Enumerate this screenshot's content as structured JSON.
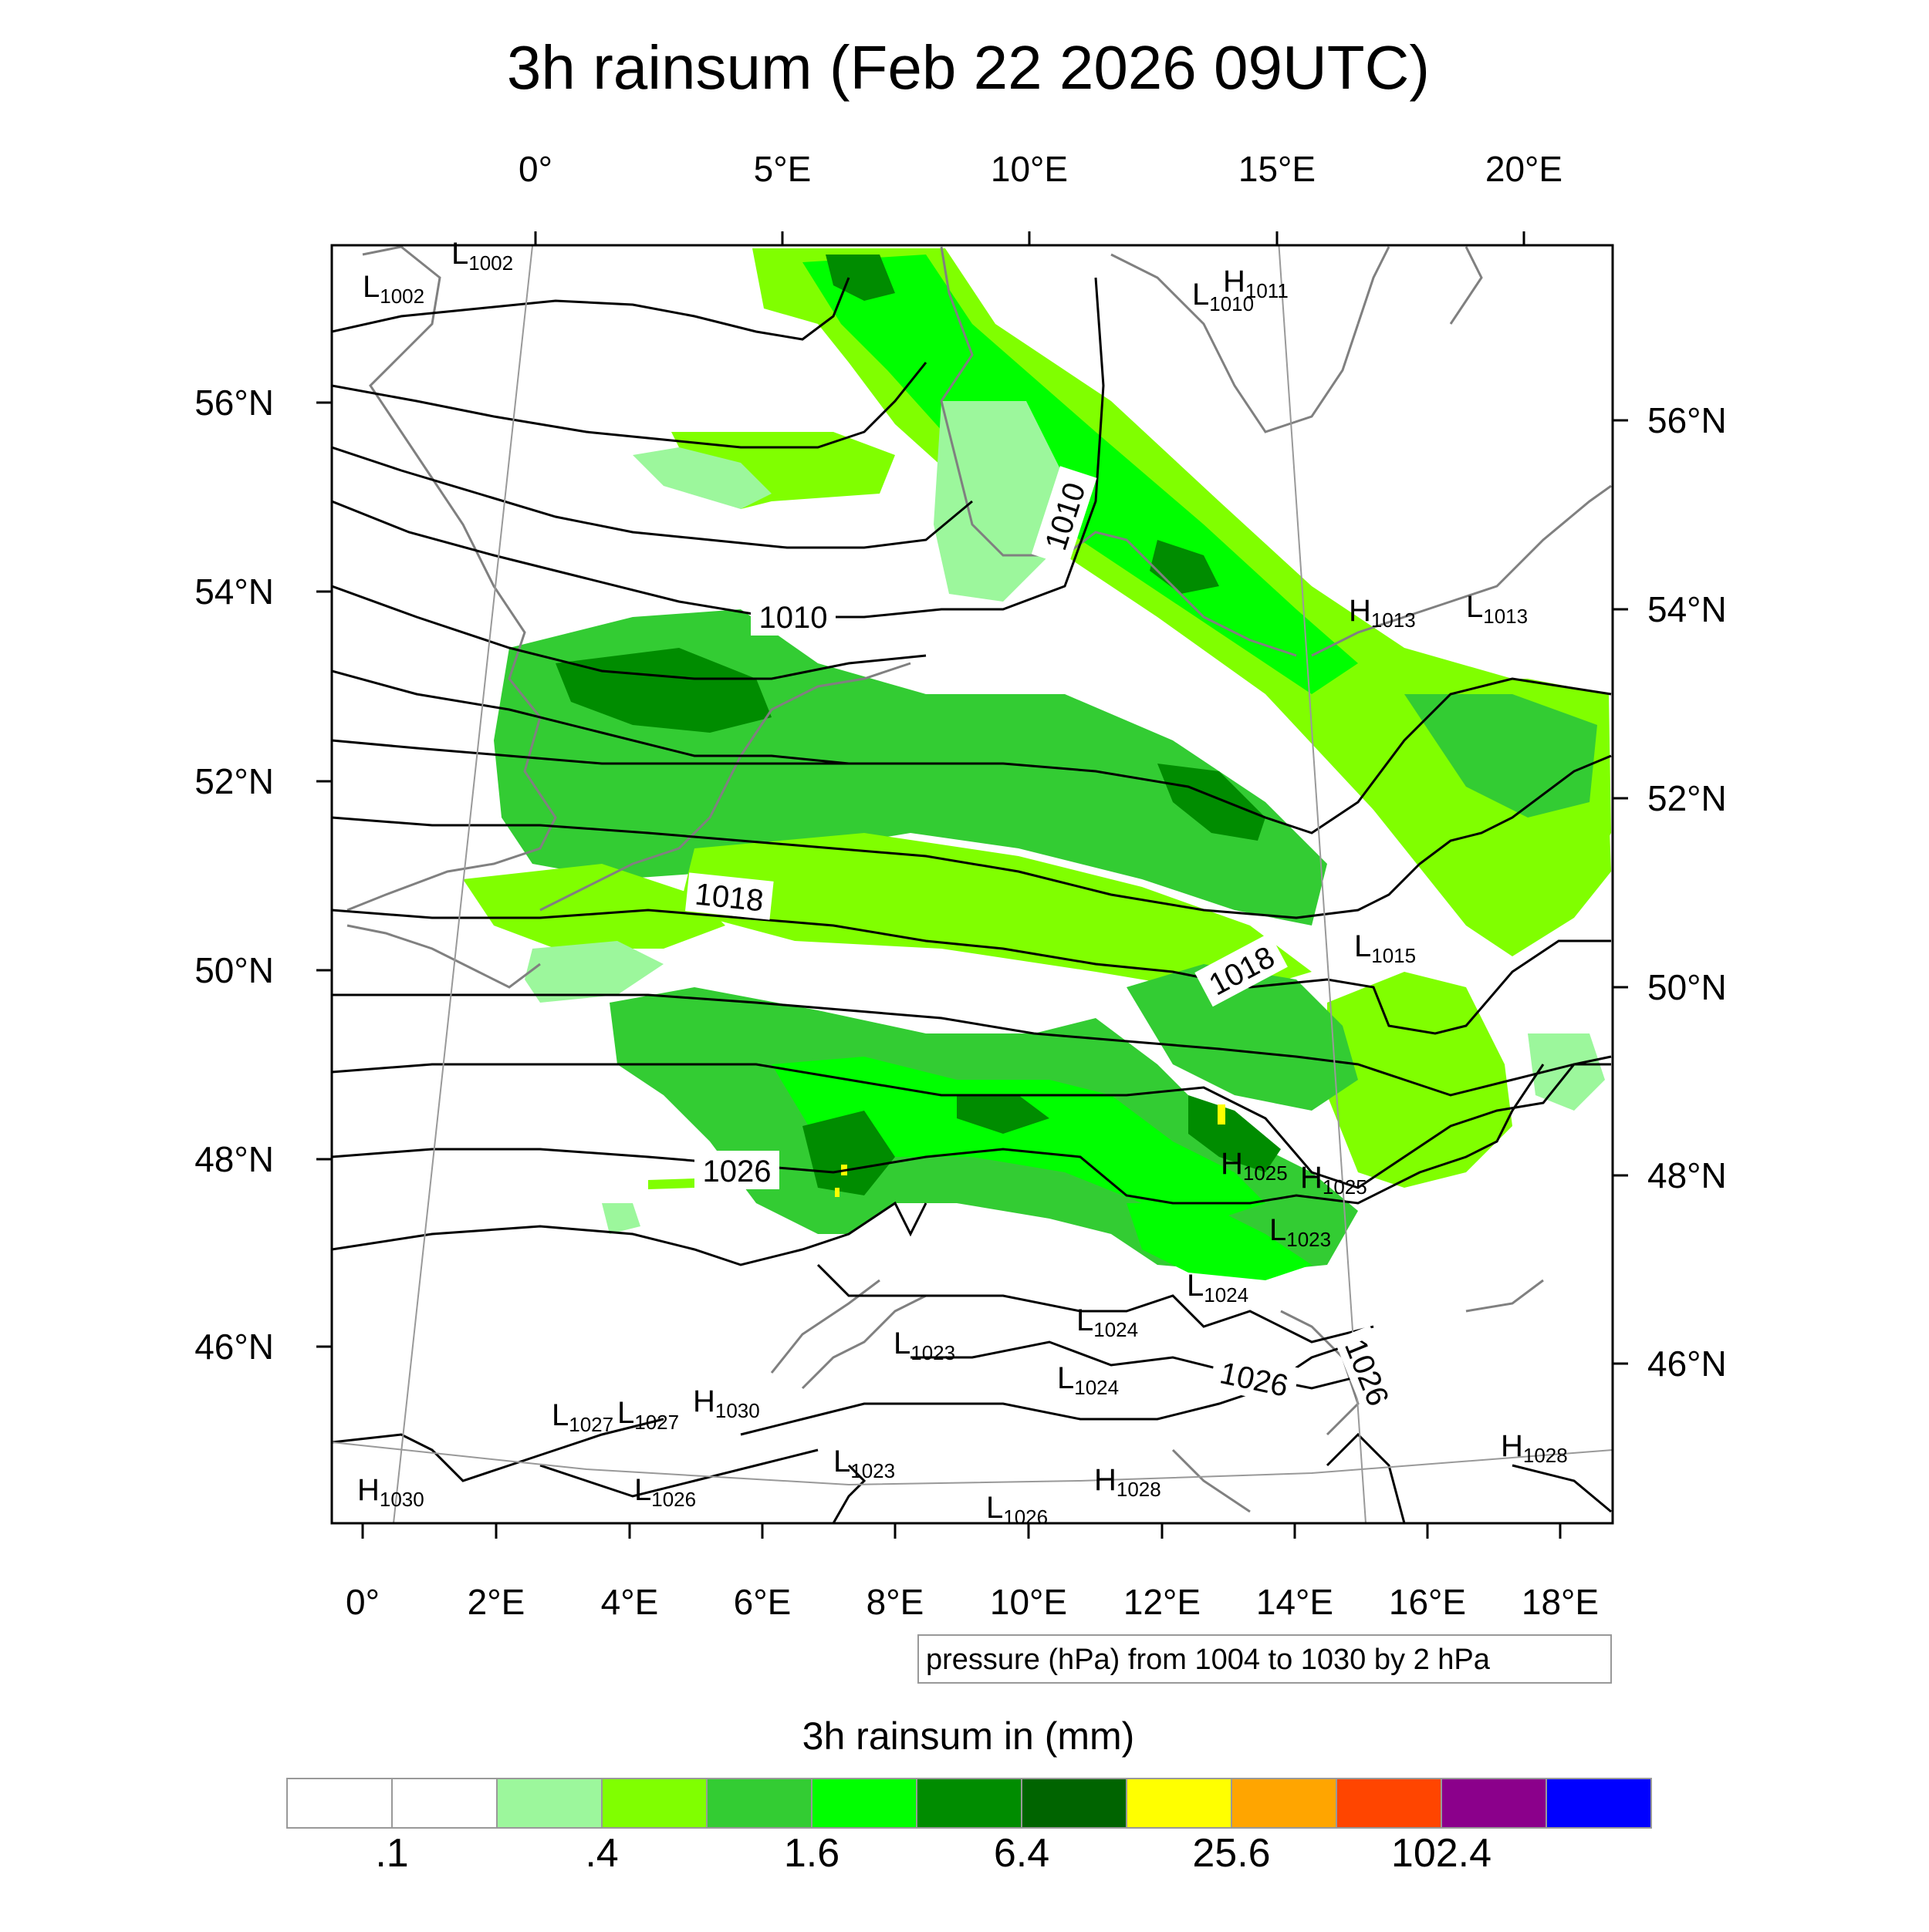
{
  "title": "3h rainsum (Feb 22 2026 09UTC)",
  "top_lon_labels": [
    "0°",
    "5°E",
    "10°E",
    "15°E",
    "20°E"
  ],
  "bottom_lon_labels": [
    "0°",
    "2°E",
    "4°E",
    "6°E",
    "8°E",
    "10°E",
    "12°E",
    "14°E",
    "16°E",
    "18°E"
  ],
  "left_lat_labels": [
    "56°N",
    "54°N",
    "52°N",
    "50°N",
    "48°N",
    "46°N"
  ],
  "right_lat_labels": [
    "56°N",
    "54°N",
    "52°N",
    "50°N",
    "48°N",
    "46°N"
  ],
  "pressure_centers": [
    {
      "kind": "L",
      "value": "1002"
    },
    {
      "kind": "L",
      "value": "1002"
    },
    {
      "kind": "L",
      "value": "1010"
    },
    {
      "kind": "H",
      "value": "1011"
    },
    {
      "kind": "H",
      "value": "1013"
    },
    {
      "kind": "L",
      "value": "1013"
    },
    {
      "kind": "L",
      "value": "1015"
    },
    {
      "kind": "H",
      "value": "1025"
    },
    {
      "kind": "H",
      "value": "1025"
    },
    {
      "kind": "L",
      "value": "1023"
    },
    {
      "kind": "L",
      "value": "1024"
    },
    {
      "kind": "L",
      "value": "1024"
    },
    {
      "kind": "L",
      "value": "1023"
    },
    {
      "kind": "L",
      "value": "1024"
    },
    {
      "kind": "L",
      "value": "1027"
    },
    {
      "kind": "L",
      "value": "1027"
    },
    {
      "kind": "H",
      "value": "1030"
    },
    {
      "kind": "L",
      "value": "1023"
    },
    {
      "kind": "L",
      "value": "1026"
    },
    {
      "kind": "H",
      "value": "1028"
    },
    {
      "kind": "H",
      "value": "1030"
    },
    {
      "kind": "H",
      "value": "1028"
    },
    {
      "kind": "L",
      "value": "1026"
    }
  ],
  "contour_labels": [
    "1010",
    "1010",
    "1018",
    "1018",
    "1026",
    "1026",
    "1026"
  ],
  "contour_info": "pressure (hPa) from 1004 to 1030 by 2 hPa",
  "colorbar": {
    "title": "3h rainsum in (mm)",
    "colors": [
      "#ffffff",
      "#ffffff",
      "#9cf79c",
      "#80ff00",
      "#33cc33",
      "#00ff00",
      "#008c00",
      "#006400",
      "#ffff00",
      "#ffa500",
      "#ff4500",
      "#8b008b",
      "#0000ff"
    ],
    "tick_labels": [
      ".1",
      ".4",
      "1.6",
      "6.4",
      "25.6",
      "102.4"
    ]
  },
  "colors": {
    "light_green": "#9cf79c",
    "lime": "#80ff00",
    "mid_green": "#33cc33",
    "green": "#00ff00",
    "dark_green": "#008c00",
    "darkest_green": "#006400",
    "yellow": "#ffff00",
    "coast": "#808080",
    "isobar": "#000000"
  }
}
